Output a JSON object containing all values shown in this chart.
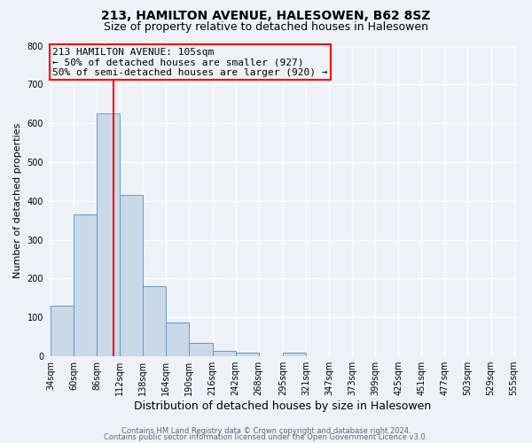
{
  "title": "213, HAMILTON AVENUE, HALESOWEN, B62 8SZ",
  "subtitle": "Size of property relative to detached houses in Halesowen",
  "xlabel": "Distribution of detached houses by size in Halesowen",
  "ylabel": "Number of detached properties",
  "bar_edges": [
    34,
    60,
    86,
    112,
    138,
    164,
    190,
    216,
    242,
    268,
    295,
    321,
    347,
    373,
    399,
    425,
    451,
    477,
    503,
    529,
    555
  ],
  "bar_heights": [
    130,
    365,
    625,
    415,
    180,
    87,
    35,
    14,
    10,
    0,
    10,
    0,
    0,
    0,
    0,
    0,
    0,
    0,
    0,
    0
  ],
  "bar_color": "#c9d9e8",
  "bar_edgecolor": "#5b9bd5",
  "vline_x": 105,
  "vline_color": "red",
  "annotation_line1": "213 HAMILTON AVENUE: 105sqm",
  "annotation_line2": "← 50% of detached houses are smaller (927)",
  "annotation_line3": "50% of semi-detached houses are larger (920) →",
  "annotation_box_edgecolor": "red",
  "ylim": [
    0,
    800
  ],
  "yticks": [
    0,
    100,
    200,
    300,
    400,
    500,
    600,
    700,
    800
  ],
  "tick_labels": [
    "34sqm",
    "60sqm",
    "86sqm",
    "112sqm",
    "138sqm",
    "164sqm",
    "190sqm",
    "216sqm",
    "242sqm",
    "268sqm",
    "295sqm",
    "321sqm",
    "347sqm",
    "373sqm",
    "399sqm",
    "425sqm",
    "451sqm",
    "477sqm",
    "503sqm",
    "529sqm",
    "555sqm"
  ],
  "footer1": "Contains HM Land Registry data © Crown copyright and database right 2024.",
  "footer2": "Contains public sector information licensed under the Open Government Licence v3.0.",
  "bg_color": "#eef2f7",
  "grid_color": "white",
  "title_fontsize": 10,
  "subtitle_fontsize": 9,
  "xlabel_fontsize": 9,
  "ylabel_fontsize": 8,
  "tick_fontsize": 7,
  "annot_fontsize": 8,
  "footer_fontsize": 6
}
